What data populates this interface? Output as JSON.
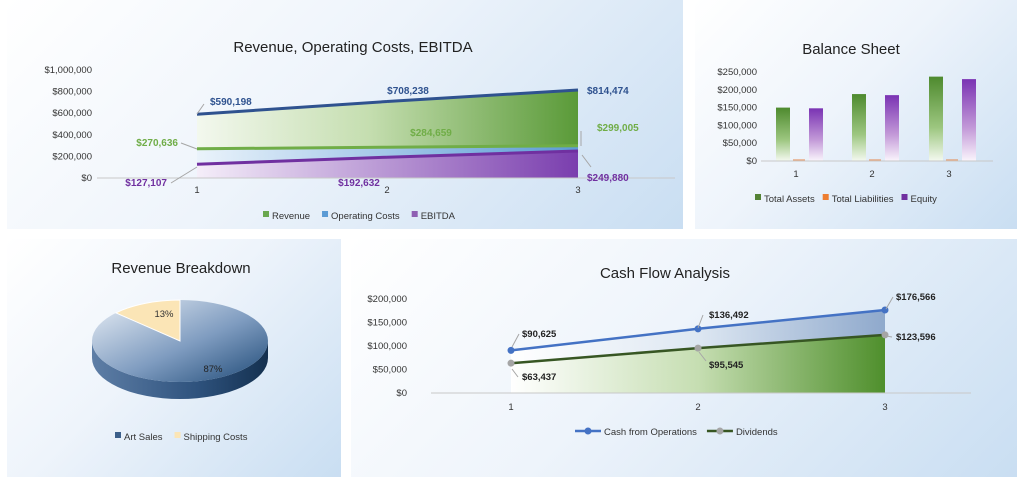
{
  "chart_data": [
    {
      "type": "area",
      "title": "Revenue, Operating Costs, EBITDA",
      "categories": [
        "1",
        "2",
        "3"
      ],
      "y_ticks": [
        "$1,000,000",
        "$800,000",
        "$600,000",
        "$400,000",
        "$200,000",
        "$0"
      ],
      "ylim": [
        0,
        1000000
      ],
      "series": [
        {
          "name": "Revenue",
          "values": [
            590198,
            708238,
            814474
          ],
          "labels": [
            "$590,198",
            "$708,238",
            "$814,474"
          ],
          "color": "#2f528f"
        },
        {
          "name": "Operating Costs",
          "values": [
            270636,
            284659,
            299005
          ],
          "labels": [
            "$270,636",
            "$284,659",
            "$299,005"
          ],
          "color": "#70ad47"
        },
        {
          "name": "EBITDA",
          "values": [
            127107,
            192632,
            249880
          ],
          "labels": [
            "$127,107",
            "$192,632",
            "$249,880"
          ],
          "color": "#7030a0"
        }
      ],
      "legend": [
        {
          "label": "Revenue",
          "color": "#6aa84f"
        },
        {
          "label": "Operating Costs",
          "color": "#5b9bd5"
        },
        {
          "label": "EBITDA",
          "color": "#8e5fb3"
        }
      ],
      "legend_position": "bottom"
    },
    {
      "type": "bar",
      "title": "Balance Sheet",
      "categories": [
        "1",
        "2",
        "3"
      ],
      "y_ticks": [
        "$250,000",
        "$200,000",
        "$150,000",
        "$100,000",
        "$50,000",
        "$0"
      ],
      "ylim": [
        0,
        250000
      ],
      "series": [
        {
          "name": "Total Assets",
          "values": [
            150000,
            188000,
            237000
          ],
          "color": "#548235"
        },
        {
          "name": "Total Liabilities",
          "values": [
            2000,
            3000,
            4000
          ],
          "color": "#ed7d31"
        },
        {
          "name": "Equity",
          "values": [
            148000,
            185000,
            230000
          ],
          "color": "#7030a0"
        }
      ],
      "legend_position": "bottom"
    },
    {
      "type": "pie",
      "title": "Revenue Breakdown",
      "series": [
        {
          "name": "Art Sales",
          "value": 87,
          "label": "87%",
          "color": "#3b5f8a"
        },
        {
          "name": "Shipping Costs",
          "value": 13,
          "label": "13%",
          "color": "#fbe5b6"
        }
      ],
      "legend_position": "bottom"
    },
    {
      "type": "line",
      "title": "Cash Flow Analysis",
      "categories": [
        "1",
        "2",
        "3"
      ],
      "y_ticks": [
        "$200,000",
        "$150,000",
        "$100,000",
        "$50,000",
        "$0"
      ],
      "ylim": [
        0,
        200000
      ],
      "series": [
        {
          "name": "Cash from Operations",
          "values": [
            90625,
            136492,
            176566
          ],
          "labels": [
            "$90,625",
            "$136,492",
            "$176,566"
          ],
          "color": "#4472c4"
        },
        {
          "name": "Dividends",
          "values": [
            63437,
            95545,
            123596
          ],
          "labels": [
            "$63,437",
            "$95,545",
            "$123,596"
          ],
          "color": "#375623"
        }
      ],
      "legend_position": "bottom"
    }
  ]
}
